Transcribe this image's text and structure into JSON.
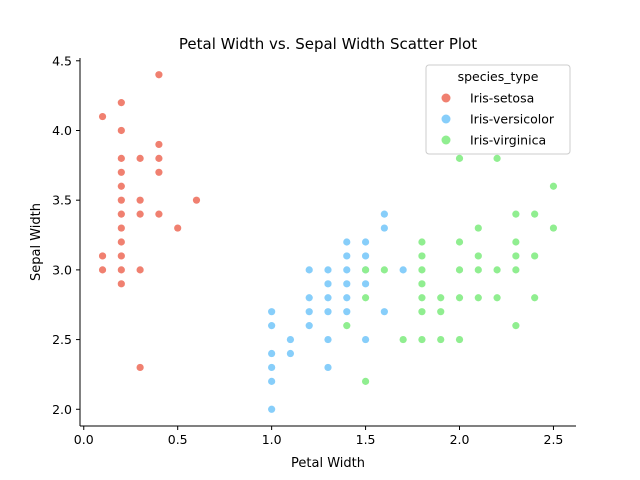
{
  "chart_data": {
    "type": "scatter",
    "title": "Petal Width vs. Sepal Width Scatter Plot",
    "xlabel": "Petal Width",
    "ylabel": "Sepal Width",
    "xlim": [
      -0.02,
      2.62
    ],
    "ylim": [
      1.88,
      4.52
    ],
    "xticks": [
      0.0,
      0.5,
      1.0,
      1.5,
      2.0,
      2.5
    ],
    "xtick_labels": [
      "0.0",
      "0.5",
      "1.0",
      "1.5",
      "2.0",
      "2.5"
    ],
    "yticks": [
      2.0,
      2.5,
      3.0,
      3.5,
      4.0,
      4.5
    ],
    "ytick_labels": [
      "2.0",
      "2.5",
      "3.0",
      "3.5",
      "4.0",
      "4.5"
    ],
    "grid": false,
    "legend": {
      "title": "species_type",
      "placement": "top-right"
    },
    "series": [
      {
        "name": "Iris-setosa",
        "color": "#f08070",
        "points": [
          [
            0.1,
            4.1
          ],
          [
            0.2,
            4.2
          ],
          [
            0.2,
            4.0
          ],
          [
            0.4,
            4.4
          ],
          [
            0.4,
            3.9
          ],
          [
            0.4,
            3.8
          ],
          [
            0.4,
            3.7
          ],
          [
            0.4,
            3.4
          ],
          [
            0.3,
            3.8
          ],
          [
            0.3,
            3.5
          ],
          [
            0.3,
            3.4
          ],
          [
            0.3,
            3.0
          ],
          [
            0.3,
            2.3
          ],
          [
            0.2,
            3.8
          ],
          [
            0.2,
            3.7
          ],
          [
            0.2,
            3.6
          ],
          [
            0.2,
            3.5
          ],
          [
            0.2,
            3.4
          ],
          [
            0.2,
            3.3
          ],
          [
            0.2,
            3.2
          ],
          [
            0.2,
            3.1
          ],
          [
            0.2,
            3.0
          ],
          [
            0.2,
            2.9
          ],
          [
            0.1,
            3.1
          ],
          [
            0.1,
            3.0
          ],
          [
            0.5,
            3.3
          ],
          [
            0.6,
            3.5
          ]
        ]
      },
      {
        "name": "Iris-versicolor",
        "color": "#87cefa",
        "points": [
          [
            1.0,
            2.7
          ],
          [
            1.0,
            2.6
          ],
          [
            1.0,
            2.4
          ],
          [
            1.0,
            2.3
          ],
          [
            1.0,
            2.2
          ],
          [
            1.0,
            2.0
          ],
          [
            1.1,
            2.5
          ],
          [
            1.1,
            2.4
          ],
          [
            1.2,
            3.0
          ],
          [
            1.2,
            2.8
          ],
          [
            1.2,
            2.7
          ],
          [
            1.2,
            2.6
          ],
          [
            1.3,
            3.0
          ],
          [
            1.3,
            2.9
          ],
          [
            1.3,
            2.8
          ],
          [
            1.3,
            2.7
          ],
          [
            1.3,
            2.5
          ],
          [
            1.3,
            2.3
          ],
          [
            1.4,
            3.2
          ],
          [
            1.4,
            3.1
          ],
          [
            1.4,
            3.0
          ],
          [
            1.4,
            2.9
          ],
          [
            1.4,
            2.8
          ],
          [
            1.4,
            2.7
          ],
          [
            1.5,
            3.2
          ],
          [
            1.5,
            3.1
          ],
          [
            1.5,
            3.0
          ],
          [
            1.5,
            2.9
          ],
          [
            1.5,
            2.5
          ],
          [
            1.6,
            3.4
          ],
          [
            1.6,
            3.3
          ],
          [
            1.6,
            2.7
          ],
          [
            1.7,
            3.0
          ]
        ]
      },
      {
        "name": "Iris-virginica",
        "color": "#90ee90",
        "points": [
          [
            1.4,
            2.6
          ],
          [
            1.5,
            3.0
          ],
          [
            1.5,
            2.8
          ],
          [
            1.5,
            2.2
          ],
          [
            1.6,
            3.0
          ],
          [
            1.7,
            2.5
          ],
          [
            1.8,
            3.2
          ],
          [
            1.8,
            3.1
          ],
          [
            1.8,
            3.0
          ],
          [
            1.8,
            2.9
          ],
          [
            1.8,
            2.8
          ],
          [
            1.8,
            2.7
          ],
          [
            1.8,
            2.5
          ],
          [
            1.9,
            2.8
          ],
          [
            1.9,
            2.7
          ],
          [
            1.9,
            2.5
          ],
          [
            2.0,
            3.8
          ],
          [
            2.0,
            3.2
          ],
          [
            2.0,
            3.0
          ],
          [
            2.0,
            2.8
          ],
          [
            2.0,
            2.5
          ],
          [
            2.1,
            3.3
          ],
          [
            2.1,
            3.1
          ],
          [
            2.1,
            3.0
          ],
          [
            2.1,
            2.8
          ],
          [
            2.2,
            3.8
          ],
          [
            2.2,
            3.0
          ],
          [
            2.2,
            2.8
          ],
          [
            2.3,
            3.4
          ],
          [
            2.3,
            3.2
          ],
          [
            2.3,
            3.1
          ],
          [
            2.3,
            3.0
          ],
          [
            2.3,
            2.6
          ],
          [
            2.4,
            3.4
          ],
          [
            2.4,
            3.1
          ],
          [
            2.4,
            2.8
          ],
          [
            2.5,
            3.6
          ],
          [
            2.5,
            3.3
          ]
        ]
      }
    ]
  }
}
